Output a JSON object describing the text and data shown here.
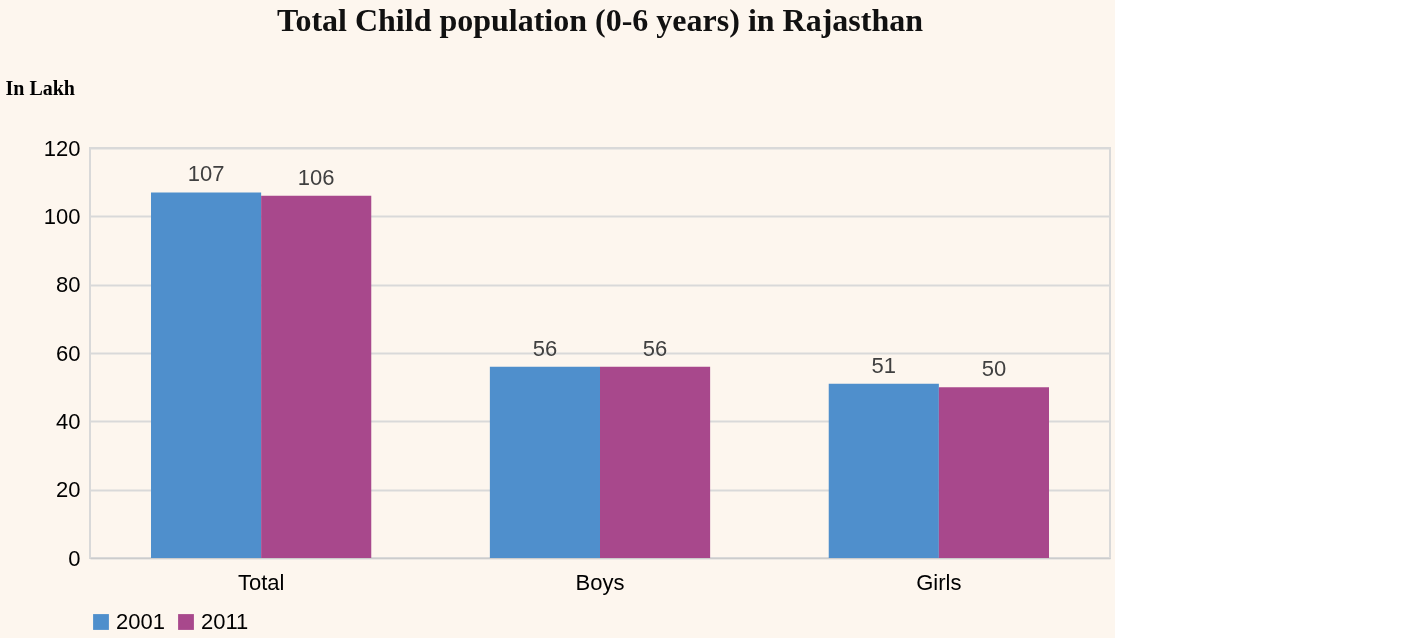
{
  "chart_data": {
    "type": "bar",
    "title": "Total Child population (0-6 years) in Rajasthan",
    "ylabel": "In Lakh",
    "categories": [
      "Total",
      "Boys",
      "Girls"
    ],
    "series": [
      {
        "name": "2001",
        "color": "#4f8fcc",
        "values": [
          107,
          56,
          51
        ]
      },
      {
        "name": "2011",
        "color": "#a8488c",
        "values": [
          106,
          56,
          50
        ]
      }
    ],
    "ylim": [
      0,
      120
    ],
    "yticks": [
      0,
      20,
      40,
      60,
      80,
      100,
      120
    ],
    "grid": "y",
    "legend": "bottom",
    "data_labels": true
  }
}
